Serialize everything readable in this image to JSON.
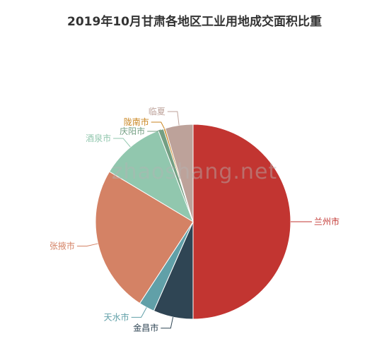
{
  "chart_data": {
    "type": "pie",
    "title": "2019年10月甘肃各地区工业用地成交面积比重",
    "series": [
      {
        "name": "兰州市",
        "value": 50.0,
        "color": "#c23531"
      },
      {
        "name": "金昌市",
        "value": 6.6,
        "color": "#2f4554"
      },
      {
        "name": "天水市",
        "value": 2.6,
        "color": "#61a0a8"
      },
      {
        "name": "张掖市",
        "value": 24.4,
        "color": "#d48265"
      },
      {
        "name": "酒泉市",
        "value": 10.6,
        "color": "#91c7ae"
      },
      {
        "name": "庆阳市",
        "value": 0.9,
        "color": "#749f83"
      },
      {
        "name": "陇南市",
        "value": 0.3,
        "color": "#ca8622"
      },
      {
        "name": "临夏",
        "value": 4.6,
        "color": "#bda29a"
      }
    ]
  },
  "watermark": "zhaoshang.net"
}
